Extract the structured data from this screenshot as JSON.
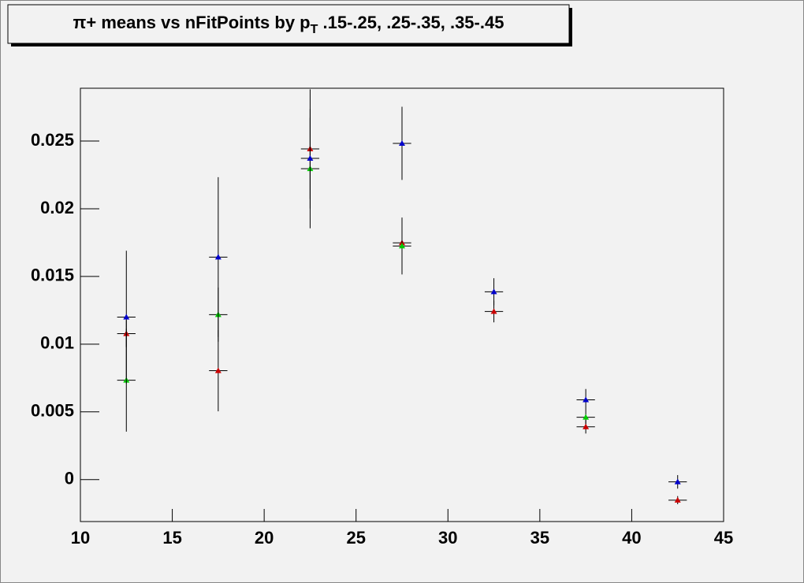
{
  "chart_data": {
    "type": "scatter",
    "title": {
      "main": "π+ means vs nFitPoints by p",
      "sub": "T",
      "rest": " .15-.25, .25-.35, .35-.45"
    },
    "x": [
      12.5,
      17.5,
      22.5,
      27.5,
      32.5,
      37.5,
      42.5
    ],
    "x_error": 0.5,
    "series": [
      {
        "color": "#cc0000",
        "values": [
          0.01078,
          0.00804,
          0.02442,
          0.01748,
          0.01241,
          0.0039,
          -0.00152
        ],
        "errors": [
          0.001,
          0.003,
          0.0044,
          0.0017,
          0.0008,
          0.0005,
          0.0003
        ]
      },
      {
        "color": "#00cc00",
        "values": [
          0.00734,
          0.01218,
          0.02296,
          0.01725,
          null,
          0.0046,
          null
        ],
        "errors": [
          0.0038,
          0.002,
          0.0044,
          0.0021,
          null,
          0.0005,
          null
        ]
      },
      {
        "color": "#0000cc",
        "values": [
          0.012,
          0.01643,
          0.02372,
          0.02483,
          0.01387,
          0.00589,
          -0.00017
        ],
        "errors": [
          0.0049,
          0.0059,
          0.003,
          0.0027,
          0.001,
          0.0008,
          0.0005
        ]
      }
    ],
    "xlim": [
      10,
      45
    ],
    "ylim": [
      -0.0031,
      0.0289
    ],
    "xticks": [
      10,
      15,
      20,
      25,
      30,
      35,
      40,
      45
    ],
    "yticks": [
      0,
      0.005,
      0.01,
      0.015,
      0.02,
      0.025
    ]
  }
}
